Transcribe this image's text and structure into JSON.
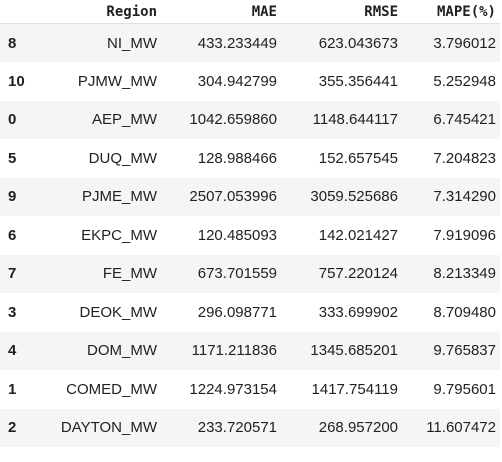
{
  "table": {
    "index_header": "",
    "columns": [
      "Region",
      "MAE",
      "RMSE",
      "MAPE(%)"
    ],
    "rows": [
      {
        "index": "8",
        "region": "NI_MW",
        "mae": "433.233449",
        "rmse": "623.043673",
        "mape": "3.796012"
      },
      {
        "index": "10",
        "region": "PJMW_MW",
        "mae": "304.942799",
        "rmse": "355.356441",
        "mape": "5.252948"
      },
      {
        "index": "0",
        "region": "AEP_MW",
        "mae": "1042.659860",
        "rmse": "1148.644117",
        "mape": "6.745421"
      },
      {
        "index": "5",
        "region": "DUQ_MW",
        "mae": "128.988466",
        "rmse": "152.657545",
        "mape": "7.204823"
      },
      {
        "index": "9",
        "region": "PJME_MW",
        "mae": "2507.053996",
        "rmse": "3059.525686",
        "mape": "7.314290"
      },
      {
        "index": "6",
        "region": "EKPC_MW",
        "mae": "120.485093",
        "rmse": "142.021427",
        "mape": "7.919096"
      },
      {
        "index": "7",
        "region": "FE_MW",
        "mae": "673.701559",
        "rmse": "757.220124",
        "mape": "8.213349"
      },
      {
        "index": "3",
        "region": "DEOK_MW",
        "mae": "296.098771",
        "rmse": "333.699902",
        "mape": "8.709480"
      },
      {
        "index": "4",
        "region": "DOM_MW",
        "mae": "1171.211836",
        "rmse": "1345.685201",
        "mape": "9.765837"
      },
      {
        "index": "1",
        "region": "COMED_MW",
        "mae": "1224.973154",
        "rmse": "1417.754119",
        "mape": "9.795601"
      },
      {
        "index": "2",
        "region": "DAYTON_MW",
        "mae": "233.720571",
        "rmse": "268.957200",
        "mape": "11.607472"
      }
    ]
  }
}
